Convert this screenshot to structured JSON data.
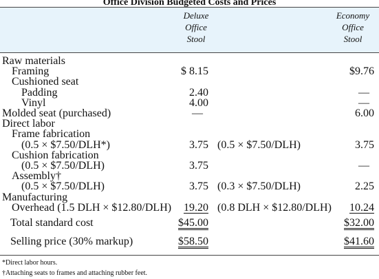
{
  "title": "Office Division Budgeted Costs and Prices",
  "columns": {
    "deluxe": [
      "Deluxe",
      "Office",
      "Stool"
    ],
    "economy": [
      "Economy",
      "Office",
      "Stool"
    ]
  },
  "rows": [
    {
      "label": "Raw materials",
      "indent": 0,
      "deluxe": "",
      "note": "",
      "economy": ""
    },
    {
      "label": "Framing",
      "indent": 1,
      "deluxe": "$ 8.15",
      "note": "",
      "economy": "$9.76"
    },
    {
      "label": "Cushioned seat",
      "indent": 1,
      "deluxe": "",
      "note": "",
      "economy": ""
    },
    {
      "label": "Padding",
      "indent": 2,
      "deluxe": "2.40",
      "note": "",
      "economy": "—"
    },
    {
      "label": "Vinyl",
      "indent": 2,
      "deluxe": "4.00",
      "note": "",
      "economy": "—"
    },
    {
      "label": "Molded seat (purchased)",
      "indent": 0,
      "deluxe": "—",
      "note": "",
      "economy": "6.00"
    },
    {
      "label": "Direct labor",
      "indent": 0,
      "deluxe": "",
      "note": "",
      "economy": ""
    },
    {
      "label": "Frame fabrication",
      "indent": 1,
      "deluxe": "",
      "note": "",
      "economy": ""
    },
    {
      "label": "(0.5 × $7.50/DLH*)",
      "indent": 2,
      "deluxe": "3.75",
      "note": "(0.5 × $7.50/DLH)",
      "economy": "3.75"
    },
    {
      "label": "Cushion fabrication",
      "indent": 1,
      "deluxe": "",
      "note": "",
      "economy": ""
    },
    {
      "label": "(0.5 × $7.50/DLH)",
      "indent": 2,
      "deluxe": "3.75",
      "note": "",
      "economy": "—"
    },
    {
      "label": "Assembly†",
      "indent": 1,
      "deluxe": "",
      "note": "",
      "economy": ""
    },
    {
      "label": "(0.5 × $7.50/DLH)",
      "indent": 2,
      "deluxe": "3.75",
      "note": "(0.3 × $7.50/DLH)",
      "economy": "2.25"
    },
    {
      "label": "Manufacturing",
      "indent": 0,
      "deluxe": "",
      "note": "",
      "economy": ""
    },
    {
      "label": "Overhead (1.5 DLH × $12.80/DLH)",
      "indent": 1,
      "deluxe": "19.20",
      "note": "(0.8 DLH × $12.80/DLH)",
      "economy": "10.24"
    }
  ],
  "total": {
    "label": "Total standard cost",
    "deluxe": "$45.00",
    "economy": "$32.00"
  },
  "selling": {
    "label": "Selling price (30% markup)",
    "deluxe": "$58.50",
    "economy": "$41.60"
  },
  "footnotes": [
    "*Direct labor hours.",
    "†Attaching seats to frames and attaching rubber feet."
  ]
}
